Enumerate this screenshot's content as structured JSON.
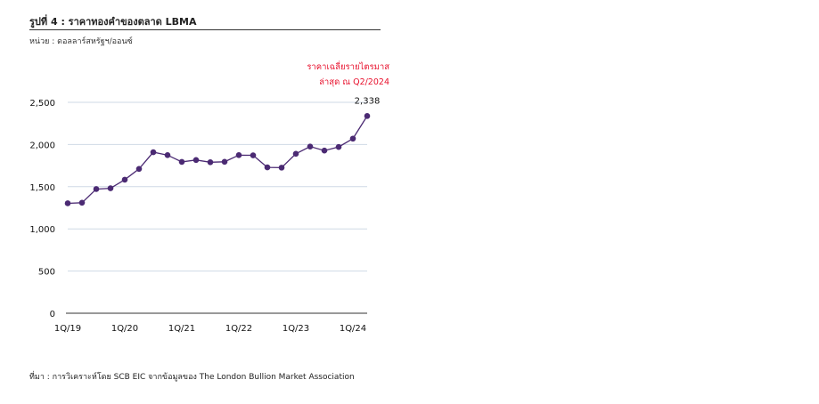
{
  "header": {
    "title": "รูปที่ 4 : ราคาทองคำของตลาด LBMA",
    "unit": "หน่วย : ดอลลาร์สหรัฐฯ/ออนซ์"
  },
  "footer": {
    "source": "ที่มา : การวิเคราะห์โดย SCB EIC จากข้อมูลของ The London Bullion Market Association"
  },
  "chart_data": {
    "type": "line",
    "title": "ราคาทองคำของตลาด LBMA",
    "ylabel": "ดอลลาร์สหรัฐฯ/ออนซ์",
    "ylim": [
      0,
      2500
    ],
    "yticks": [
      "0",
      "500",
      "1,000",
      "1,500",
      "2,000",
      "2,500"
    ],
    "ytick_values": [
      0,
      500,
      1000,
      1500,
      2000,
      2500
    ],
    "xtick_labels": [
      "1Q/19",
      "1Q/20",
      "1Q/21",
      "1Q/22",
      "1Q/23",
      "1Q/24"
    ],
    "xtick_index": [
      0,
      4,
      8,
      12,
      16,
      20
    ],
    "x": [
      "1Q19",
      "2Q19",
      "3Q19",
      "4Q19",
      "1Q20",
      "2Q20",
      "3Q20",
      "4Q20",
      "1Q21",
      "2Q21",
      "3Q21",
      "4Q21",
      "1Q22",
      "2Q22",
      "3Q22",
      "4Q22",
      "1Q23",
      "2Q23",
      "3Q23",
      "4Q23",
      "1Q24",
      "2Q24"
    ],
    "series": [
      {
        "name": "ราคาทองคำ",
        "color": "#4b2a73",
        "values": [
          1303,
          1310,
          1472,
          1481,
          1583,
          1711,
          1909,
          1874,
          1794,
          1816,
          1790,
          1795,
          1874,
          1872,
          1729,
          1726,
          1890,
          1976,
          1928,
          1971,
          2070,
          2338
        ]
      }
    ],
    "last_label": "2,338",
    "annotation": [
      "ราคาเฉลี่ยรายไตรมาส",
      "ล่าสุด ณ Q2/2024"
    ],
    "annotation_color": "#e8112d",
    "grid": true
  }
}
